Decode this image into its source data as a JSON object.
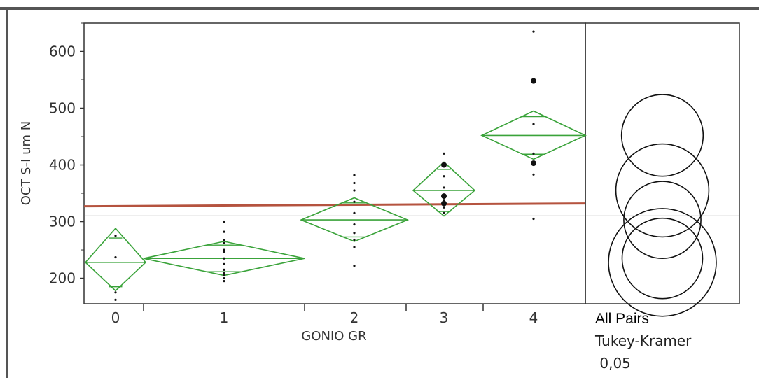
{
  "chart_data": {
    "type": "scatter",
    "ylabel": "OCT S-I um N",
    "xlabel": "GONIO GR",
    "ylim": [
      155,
      650
    ],
    "yticks": [
      "200",
      "300",
      "400",
      "500",
      "600"
    ],
    "categories": [
      "0",
      "1",
      "2",
      "3",
      "4"
    ],
    "groups": [
      {
        "label": "0",
        "mean": 228,
        "ci": [
          178,
          288
        ],
        "points": [
          275,
          237,
          175,
          162
        ]
      },
      {
        "label": "1",
        "mean": 235,
        "ci": [
          205,
          265
        ],
        "points": [
          300,
          282,
          267,
          262,
          250,
          247,
          235,
          225,
          215,
          210,
          205,
          200,
          195
        ]
      },
      {
        "label": "2",
        "mean": 303,
        "ci": [
          265,
          342
        ],
        "points": [
          382,
          368,
          355,
          335,
          315,
          295,
          280,
          268,
          255,
          222
        ]
      },
      {
        "label": "3",
        "mean": 355,
        "ci": [
          310,
          405
        ],
        "points": [
          420,
          400,
          380,
          360,
          345,
          338,
          335,
          332,
          325,
          315
        ]
      },
      {
        "label": "4",
        "mean": 452,
        "ci": [
          410,
          495
        ],
        "points": [
          635,
          548,
          472,
          420,
          403,
          383,
          305
        ]
      }
    ],
    "grand_mean": 310,
    "reference_line": {
      "value_at_start": 327,
      "value_at_end": 332,
      "color": "#b5533f"
    },
    "comparison_circles": {
      "note_lines": [
        "All Pairs",
        "Tukey-Kramer",
        " 0,05"
      ],
      "circles": [
        {
          "center": 452,
          "radius": 72
        },
        {
          "center": 355,
          "radius": 82
        },
        {
          "center": 303,
          "radius": 68
        },
        {
          "center": 235,
          "radius": 71
        },
        {
          "center": 228,
          "radius": 95
        }
      ]
    },
    "diamond_color": "#3aa33a",
    "grid": false
  }
}
